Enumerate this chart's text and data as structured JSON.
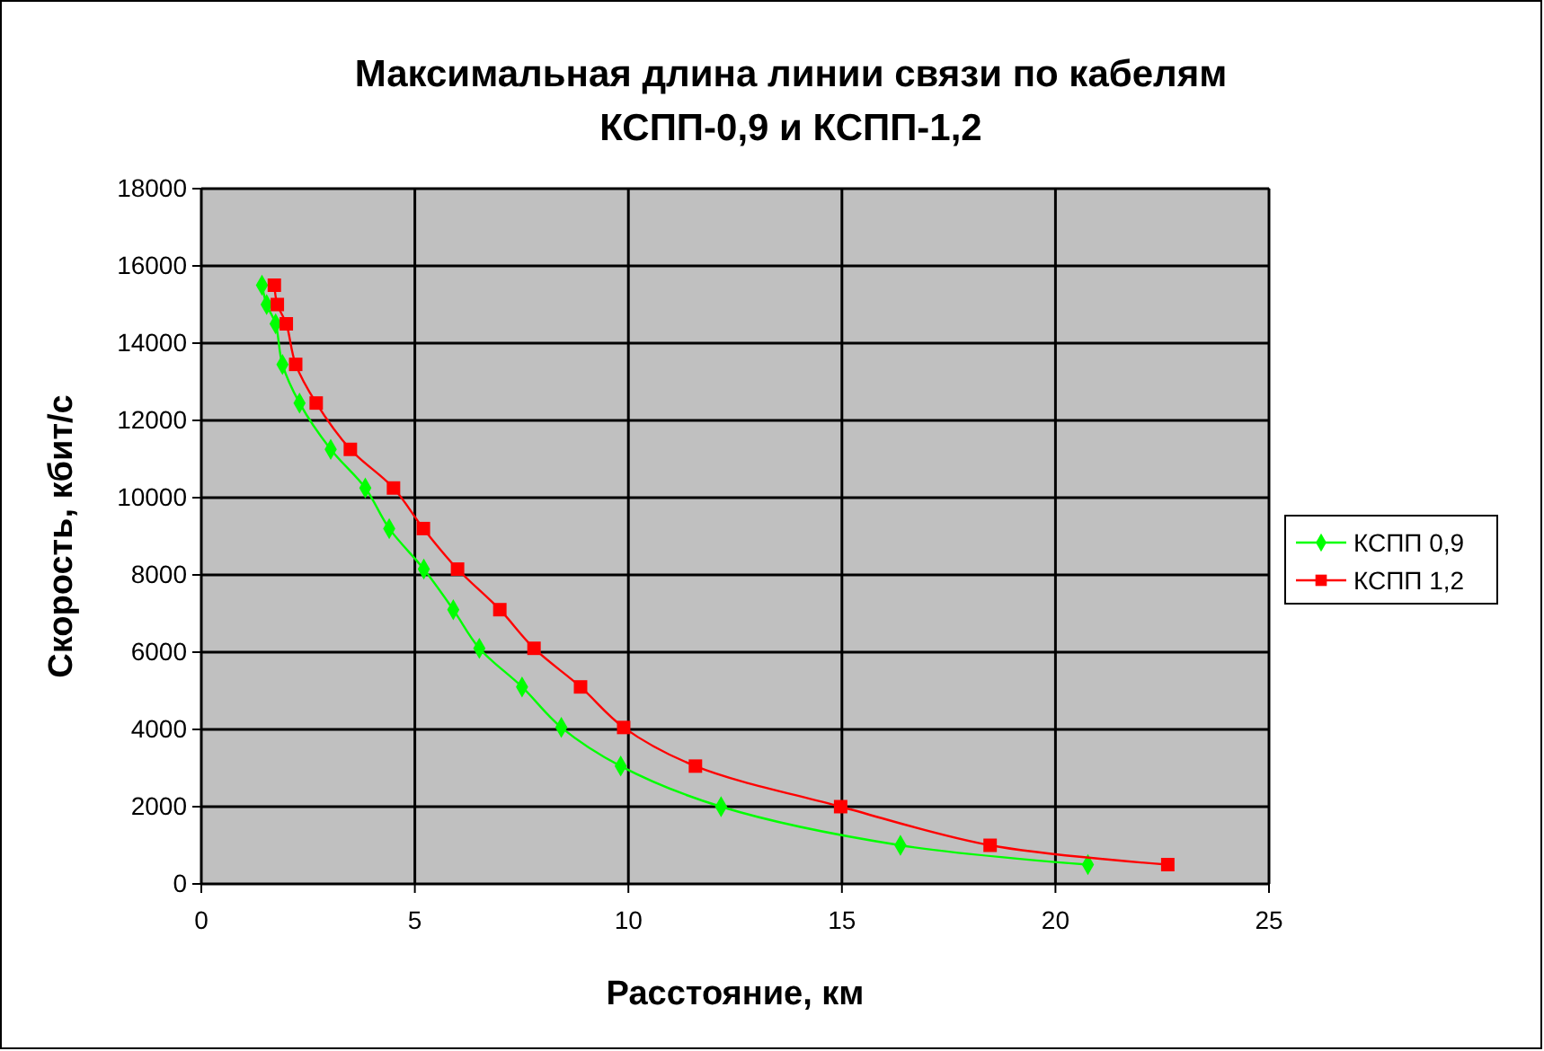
{
  "chart_data": {
    "type": "line",
    "title": "Максимальная длина линии связи по кабелям\nКСПП-0,9 и КСПП-1,2",
    "xlabel": "Расстояние, км",
    "ylabel": "Скорость, кбит/с",
    "xlim": [
      0,
      25
    ],
    "xticks": [
      0,
      5,
      10,
      15,
      20,
      25
    ],
    "ylim": [
      0,
      18000
    ],
    "yticks": [
      0,
      2000,
      4000,
      6000,
      8000,
      10000,
      12000,
      14000,
      16000,
      18000
    ],
    "grid": true,
    "legend": "right",
    "series": [
      {
        "name": "КСПП 0,9",
        "color": "#00ff00",
        "marker": "diamond",
        "x": [
          1.42,
          1.53,
          1.74,
          1.9,
          2.3,
          3.03,
          3.84,
          4.4,
          5.21,
          5.9,
          6.51,
          7.51,
          8.43,
          9.82,
          12.17,
          16.37,
          20.76
        ],
        "values": [
          15500,
          15000,
          14500,
          13450,
          12450,
          11250,
          10250,
          9200,
          8150,
          7100,
          6100,
          5100,
          4050,
          3050,
          2000,
          1000,
          500
        ]
      },
      {
        "name": "КСПП 1,2",
        "color": "#ff0000",
        "marker": "square",
        "x": [
          1.71,
          1.78,
          1.99,
          2.21,
          2.69,
          3.49,
          4.5,
          5.2,
          6.0,
          6.99,
          7.79,
          8.88,
          9.89,
          11.57,
          14.97,
          18.47,
          22.63
        ],
        "values": [
          15500,
          15000,
          14500,
          13450,
          12450,
          11250,
          10250,
          9200,
          8150,
          7100,
          6100,
          5100,
          4050,
          3050,
          2000,
          1000,
          500
        ]
      }
    ]
  }
}
